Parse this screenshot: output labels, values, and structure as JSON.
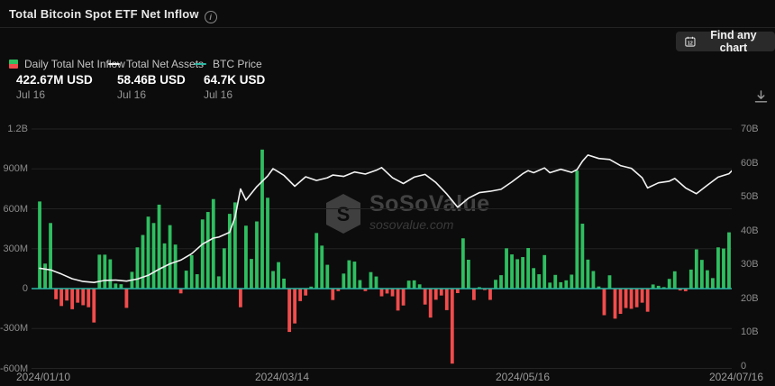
{
  "header": {
    "title": "Total Bitcoin Spot ETF Net Inflow",
    "find_chart_label": "Find any chart"
  },
  "legend": [
    {
      "label": "Daily Total Net Inflow",
      "value": "422.67M USD",
      "date": "Jul 16",
      "swatch_colors": [
        "#2fbe60",
        "#f24c4c"
      ]
    },
    {
      "label": "Total Net Assets",
      "value": "58.46B USD",
      "date": "Jul 16",
      "color": "#f2f2f2"
    },
    {
      "label": "BTC Price",
      "value": "64.7K USD",
      "date": "Jul 16",
      "color": "#2ab8a4"
    }
  ],
  "watermark": {
    "name": "SoSoValue",
    "domain": "sosovalue.com"
  },
  "chart_data": {
    "type": "bar",
    "title": "Total Bitcoin Spot ETF Net Inflow",
    "x_axis_labels": [
      "2024/01/10",
      "2024/03/14",
      "2024/05/16",
      "2024/07/16"
    ],
    "left_axis": {
      "unit": "USD",
      "ticks": [
        "1.2B",
        "900M",
        "600M",
        "300M",
        "0",
        "-300M",
        "-600M"
      ],
      "tick_values_musd": [
        1200,
        900,
        600,
        300,
        0,
        -300,
        -600
      ]
    },
    "right_axis": {
      "unit": "USD",
      "ticks": [
        "70B",
        "60B",
        "50B",
        "40B",
        "30B",
        "20B",
        "10B",
        "0"
      ],
      "tick_values_busd": [
        70,
        60,
        50,
        40,
        30,
        20,
        10,
        0
      ]
    },
    "grid": true,
    "series": [
      {
        "name": "Daily Total Net Inflow",
        "type": "bar",
        "axis": "left",
        "unit": "M USD",
        "positive_color": "#2fbe60",
        "negative_color": "#f24c4c",
        "latest": {
          "date": "Jul 16",
          "value_musd": 422.67
        },
        "values": [
          null,
          655,
          188,
          493,
          -80,
          -131,
          -90,
          -155,
          -106,
          -125,
          -140,
          -255,
          255,
          255,
          220,
          38,
          33,
          -145,
          126,
          310,
          403,
          541,
          493,
          631,
          340,
          477,
          331,
          -36,
          135,
          251,
          108,
          520,
          576,
          673,
          92,
          303,
          562,
          648,
          -140,
          473,
          223,
          505,
          1045,
          683,
          132,
          199,
          75,
          -326,
          -262,
          -94,
          -52,
          15,
          418,
          323,
          179,
          -86,
          -19,
          113,
          213,
          203,
          64,
          -19,
          124,
          91,
          -58,
          -37,
          -58,
          -165,
          -127,
          60,
          62,
          32,
          -120,
          -218,
          -84,
          -52,
          -162,
          -564,
          -34,
          378,
          217,
          -86,
          11,
          -11,
          -85,
          66,
          101,
          303,
          257,
          221,
          237,
          305,
          154,
          108,
          252,
          45,
          103,
          48,
          62,
          105,
          887,
          488,
          218,
          132,
          16,
          -200,
          100,
          -226,
          -190,
          -146,
          -152,
          -140,
          -106,
          -174,
          31,
          21,
          11,
          73,
          130,
          -14,
          -20,
          143,
          295,
          216,
          138,
          79,
          310,
          301,
          423
        ]
      },
      {
        "name": "Total Net Assets",
        "type": "line",
        "axis": "right",
        "unit": "B USD",
        "color": "#f2f2f2",
        "latest": {
          "date": "Jul 16",
          "value_busd": 58.46
        },
        "points": [
          [
            1,
            28.9
          ],
          [
            3,
            28.4
          ],
          [
            5,
            27.2
          ],
          [
            7,
            25.8
          ],
          [
            9,
            25.0
          ],
          [
            11,
            24.7
          ],
          [
            13,
            25.3
          ],
          [
            15,
            25.4
          ],
          [
            17,
            25.1
          ],
          [
            19,
            25.7
          ],
          [
            21,
            26.8
          ],
          [
            23,
            28.6
          ],
          [
            25,
            30.2
          ],
          [
            27,
            31.3
          ],
          [
            29,
            33.2
          ],
          [
            31,
            36.0
          ],
          [
            33,
            37.8
          ],
          [
            34,
            38.1
          ],
          [
            36,
            39.5
          ],
          [
            37,
            44.0
          ],
          [
            38,
            52.3
          ],
          [
            39,
            49.0
          ],
          [
            41,
            53.0
          ],
          [
            43,
            56.1
          ],
          [
            44,
            58.3
          ],
          [
            45,
            57.3
          ],
          [
            46,
            56.3
          ],
          [
            48,
            53.1
          ],
          [
            50,
            55.9
          ],
          [
            52,
            54.8
          ],
          [
            54,
            55.6
          ],
          [
            55,
            56.4
          ],
          [
            57,
            56.0
          ],
          [
            59,
            57.3
          ],
          [
            61,
            56.7
          ],
          [
            63,
            57.8
          ],
          [
            64,
            58.6
          ],
          [
            66,
            55.6
          ],
          [
            68,
            53.9
          ],
          [
            70,
            55.8
          ],
          [
            72,
            56.6
          ],
          [
            74,
            54.2
          ],
          [
            76,
            50.8
          ],
          [
            78,
            46.9
          ],
          [
            80,
            49.6
          ],
          [
            82,
            51.2
          ],
          [
            84,
            51.6
          ],
          [
            86,
            52.2
          ],
          [
            88,
            54.4
          ],
          [
            90,
            56.8
          ],
          [
            91,
            57.7
          ],
          [
            92,
            57.1
          ],
          [
            94,
            58.5
          ],
          [
            95,
            57.1
          ],
          [
            97,
            58.1
          ],
          [
            99,
            57.2
          ],
          [
            100,
            58.0
          ],
          [
            101,
            60.5
          ],
          [
            102,
            62.3
          ],
          [
            104,
            61.3
          ],
          [
            106,
            61.0
          ],
          [
            108,
            59.2
          ],
          [
            110,
            58.4
          ],
          [
            112,
            55.6
          ],
          [
            113,
            52.6
          ],
          [
            115,
            54.1
          ],
          [
            117,
            54.6
          ],
          [
            118,
            55.4
          ],
          [
            120,
            52.6
          ],
          [
            122,
            50.9
          ],
          [
            124,
            53.4
          ],
          [
            126,
            55.8
          ],
          [
            128,
            56.8
          ],
          [
            129,
            58.46
          ]
        ]
      },
      {
        "name": "BTC Price",
        "type": "line",
        "unit": "K USD",
        "color": "#2ab8a4",
        "latest": {
          "date": "Jul 16",
          "value_kusd": 64.7
        },
        "display": "horizontal line drawn along the zero baseline"
      }
    ]
  }
}
